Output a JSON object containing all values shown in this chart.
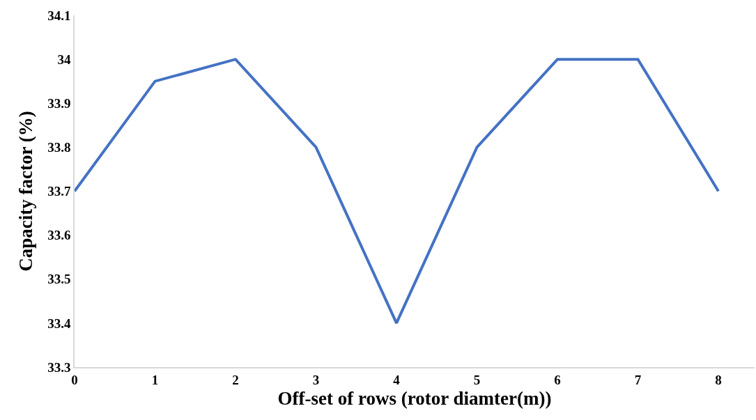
{
  "chart_data": {
    "type": "line",
    "xlabel": "Off-set of rows (rotor diamter(m))",
    "ylabel": "Capacity factor (%)",
    "x": [
      0,
      1,
      2,
      3,
      4,
      5,
      6,
      7,
      8
    ],
    "series": [
      {
        "color": "#4472c4",
        "values": [
          33.7,
          33.95,
          34,
          33.8,
          33.4,
          33.8,
          34,
          34,
          33.7
        ]
      }
    ],
    "xlim": [
      0,
      8.45
    ],
    "xticks": [
      0,
      1,
      2,
      3,
      4,
      5,
      6,
      7,
      8
    ],
    "ylim": [
      33.3,
      34.1
    ],
    "yticks": [
      33.3,
      33.4,
      33.5,
      33.6,
      33.7,
      33.8,
      33.9,
      {
        "value": 34,
        "label": "34"
      },
      34.1
    ],
    "legend": false,
    "marker": "none",
    "line_style": "solid"
  }
}
